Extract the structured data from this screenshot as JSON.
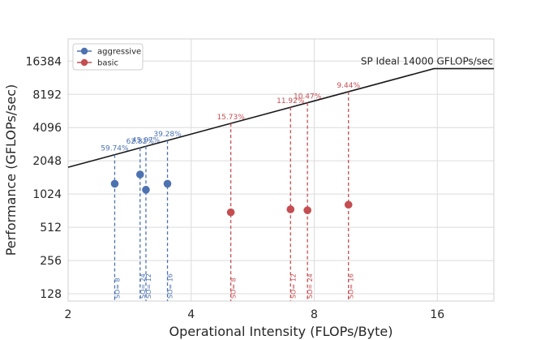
{
  "chart_data": {
    "type": "scatter",
    "xlabel": "Operational Intensity (FLOPs/Byte)",
    "ylabel": "Performance (GFLOPs/sec)",
    "xscale": "log2",
    "yscale": "log2",
    "xlim": [
      2,
      22
    ],
    "ylim": [
      110,
      26000
    ],
    "xticks": [
      2,
      4,
      8,
      16
    ],
    "xtick_labels": [
      "2",
      "4",
      "8",
      "16"
    ],
    "yticks": [
      128,
      256,
      512,
      1024,
      2048,
      4096,
      8192,
      16384
    ],
    "ytick_labels": [
      "128",
      "256",
      "512",
      "1024",
      "2048",
      "4096",
      "8192",
      "16384"
    ],
    "grid": true,
    "legend_position": "top-left",
    "roofline": {
      "label": "SP Ideal 14000 GFLOPs/sec",
      "peak": 14000,
      "ridge_x": 15.7,
      "start": {
        "x": 2,
        "y": 1790
      }
    },
    "series": [
      {
        "name": "aggressive",
        "color": "#4c72b0",
        "points": [
          {
            "x": 2.6,
            "y": 1270,
            "pct": "59.74%",
            "so": "SO= 8"
          },
          {
            "x": 3.0,
            "y": 1540,
            "pct": "62.82%",
            "so": "SO= 24"
          },
          {
            "x": 3.1,
            "y": 1120,
            "pct": "45.07%",
            "so": "SO= 12"
          },
          {
            "x": 3.5,
            "y": 1270,
            "pct": "39.28%",
            "so": "SO= 16"
          }
        ]
      },
      {
        "name": "basic",
        "color": "#c44e52",
        "points": [
          {
            "x": 5.0,
            "y": 700,
            "pct": "15.73%",
            "so": "SO= 8"
          },
          {
            "x": 7.0,
            "y": 745,
            "pct": "11.92%",
            "so": "SO= 12"
          },
          {
            "x": 7.7,
            "y": 730,
            "pct": "10.47%",
            "so": "SO= 24"
          },
          {
            "x": 9.7,
            "y": 820,
            "pct": "9.44%",
            "so": "SO= 16"
          }
        ]
      }
    ]
  }
}
